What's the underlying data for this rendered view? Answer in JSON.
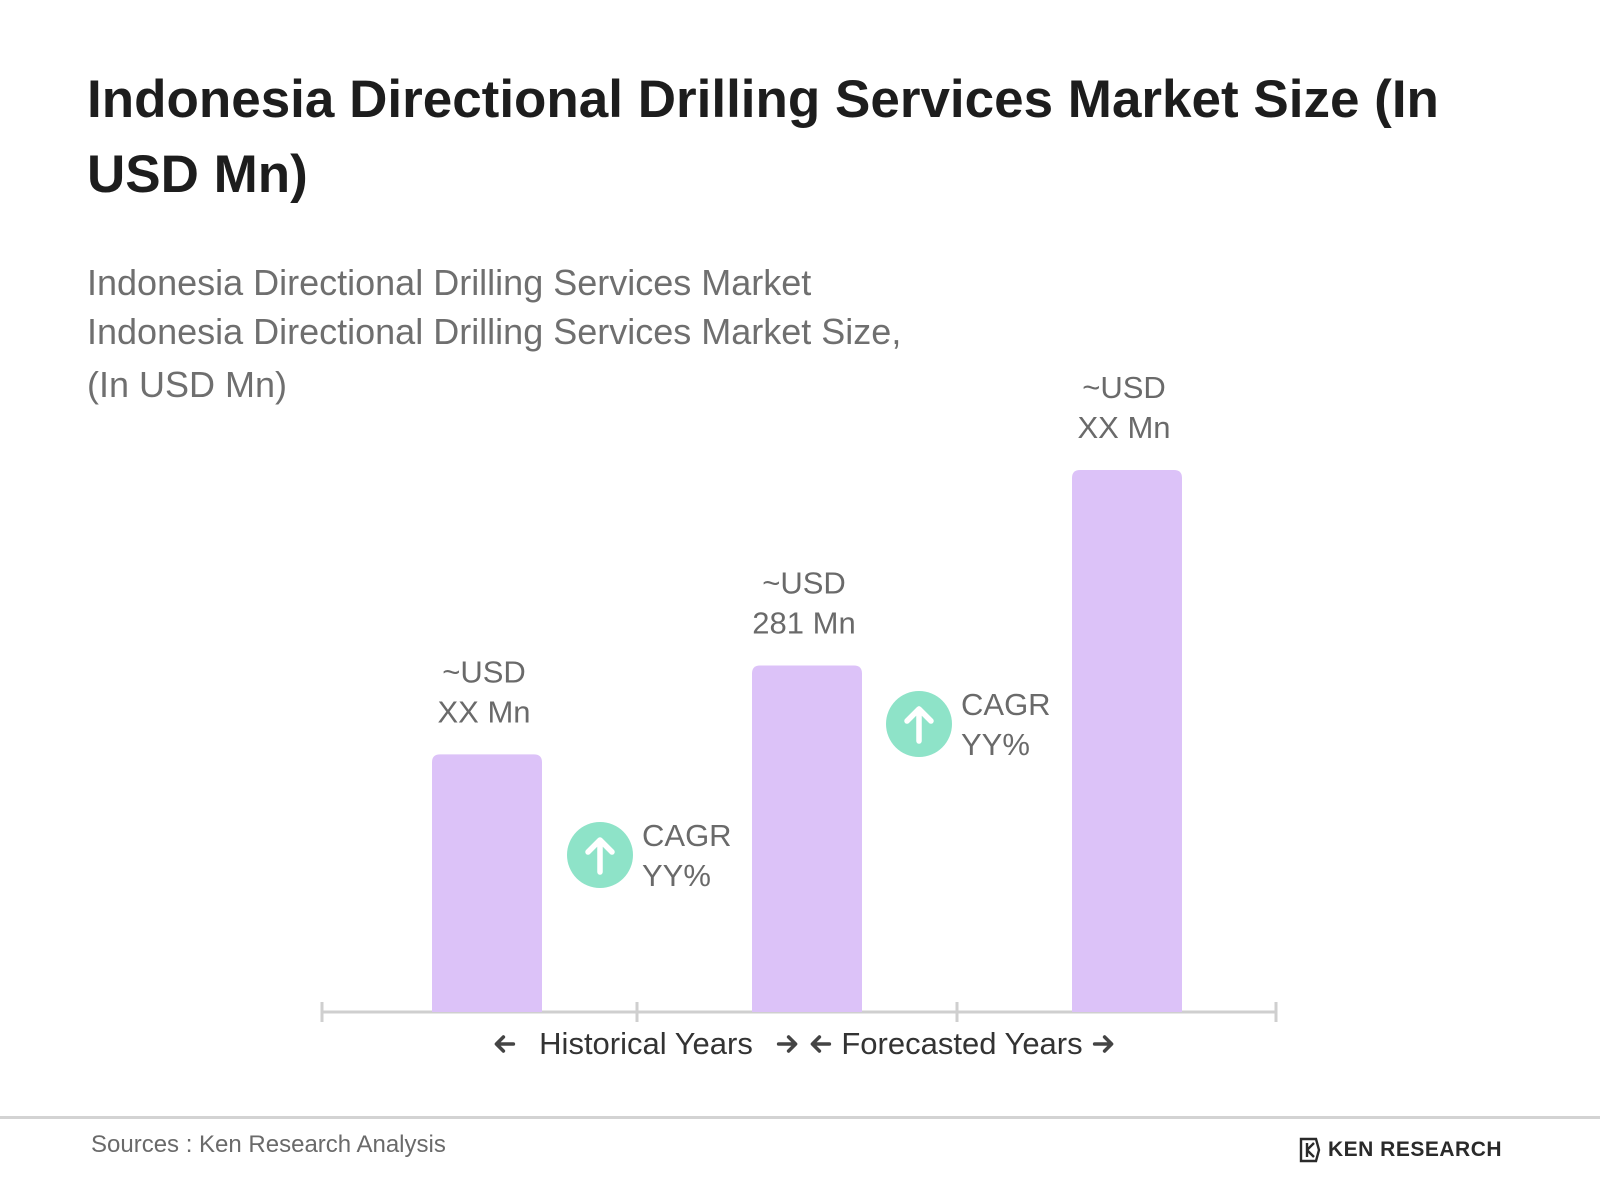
{
  "title": "Indonesia Directional Drilling Services Market Size (In USD Mn)",
  "subtitle": [
    "Indonesia Directional Drilling Services Market",
    "Indonesia Directional Drilling Services Market Size,",
    "(In USD Mn)"
  ],
  "chart_data": {
    "type": "bar",
    "categories": [
      "",
      "",
      ""
    ],
    "values": [
      290,
      390,
      610
    ],
    "value_labels": [
      [
        "~USD",
        "XX Mn"
      ],
      [
        "~USD",
        "281 Mn"
      ],
      [
        "~USD",
        "XX Mn"
      ]
    ],
    "ylim": [
      0,
      700
    ],
    "cagr": [
      {
        "label": "CAGR",
        "value": "YY%"
      },
      {
        "label": "CAGR",
        "value": "YY%"
      }
    ],
    "periods": [
      "Historical Years",
      "Forecasted Years"
    ],
    "grid": false,
    "bar_color": "#dcc2f8",
    "cagr_icon_color": "#8ee3c8",
    "axis_color": "#cfcfcf"
  },
  "footer": {
    "source": "Sources : Ken Research Analysis",
    "logo_text": "KEN RESEARCH"
  }
}
